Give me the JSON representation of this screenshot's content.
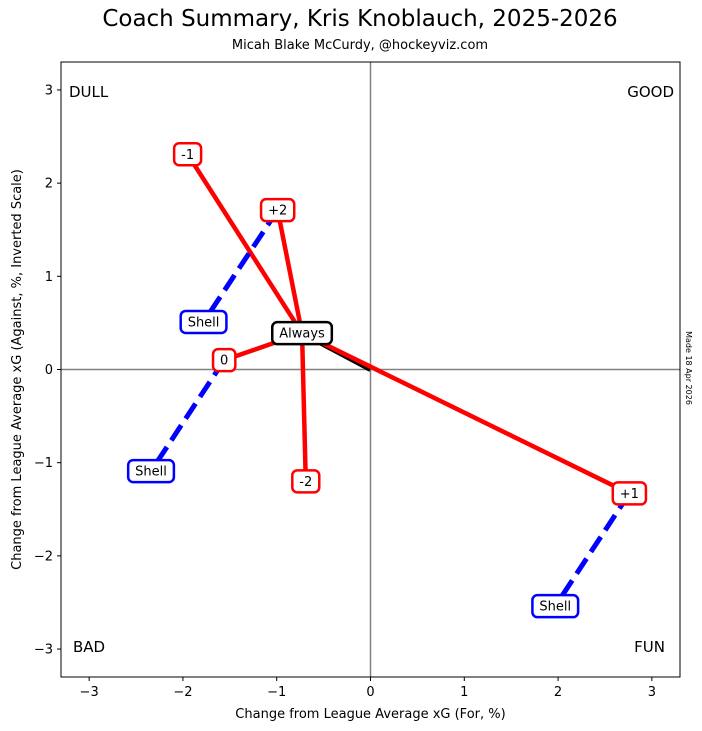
{
  "header": {
    "title": "Coach Summary, Kris Knoblauch, 2025-2026",
    "subtitle": "Micah Blake McCurdy, @hockeyviz.com"
  },
  "side_note": "Made 18 Apr 2026",
  "chart_data": {
    "type": "scatter",
    "xlabel": "Change from League Average xG (For, %)",
    "ylabel": "Change from League Average xG (Against, %, Inverted Scale)",
    "xlim": [
      -3.3,
      3.3
    ],
    "ylim": [
      3.3,
      -3.3
    ],
    "y_inverted": true,
    "x_ticks": [
      "−3",
      "−2",
      "−1",
      "0",
      "1",
      "2",
      "3"
    ],
    "y_ticks": [
      "−3",
      "−2",
      "−1",
      "0",
      "1",
      "2",
      "3"
    ],
    "x_tick_values": [
      -3,
      -2,
      -1,
      0,
      1,
      2,
      3
    ],
    "y_tick_values": [
      -3,
      -2,
      -1,
      0,
      1,
      2,
      3
    ],
    "reference_lines": {
      "x": 0,
      "y": 0
    },
    "corner_labels": {
      "top_left": "DULL",
      "top_right": "GOOD",
      "bottom_left": "BAD",
      "bottom_right": "FUN"
    },
    "colors": {
      "always": "#000000",
      "score_state": "#ff0000",
      "shell": "#0000ff",
      "reference": "#808080"
    },
    "points": [
      {
        "id": "always",
        "label": "Always",
        "x": -0.73,
        "y": 0.39,
        "kind": "always"
      },
      {
        "id": "plus1",
        "label": "+1",
        "x": 2.76,
        "y": -1.33,
        "kind": "score",
        "parent": "always"
      },
      {
        "id": "minus2",
        "label": "-2",
        "x": -0.69,
        "y": -1.2,
        "kind": "score",
        "parent": "always"
      },
      {
        "id": "zero",
        "label": "0",
        "x": -1.56,
        "y": 0.1,
        "kind": "score",
        "parent": "always"
      },
      {
        "id": "plus2",
        "label": "+2",
        "x": -0.99,
        "y": 1.71,
        "kind": "score",
        "parent": "always"
      },
      {
        "id": "minus1",
        "label": "-1",
        "x": -1.95,
        "y": 2.31,
        "kind": "score",
        "parent": "always"
      },
      {
        "id": "shell-plus1",
        "label": "Shell",
        "x": 1.97,
        "y": -2.54,
        "kind": "shell",
        "parent": "plus1"
      },
      {
        "id": "shell-zero",
        "label": "Shell",
        "x": -2.34,
        "y": -1.09,
        "kind": "shell",
        "parent": "zero"
      },
      {
        "id": "shell-plus2",
        "label": "Shell",
        "x": -1.78,
        "y": 0.51,
        "kind": "shell",
        "parent": "plus2"
      }
    ]
  }
}
